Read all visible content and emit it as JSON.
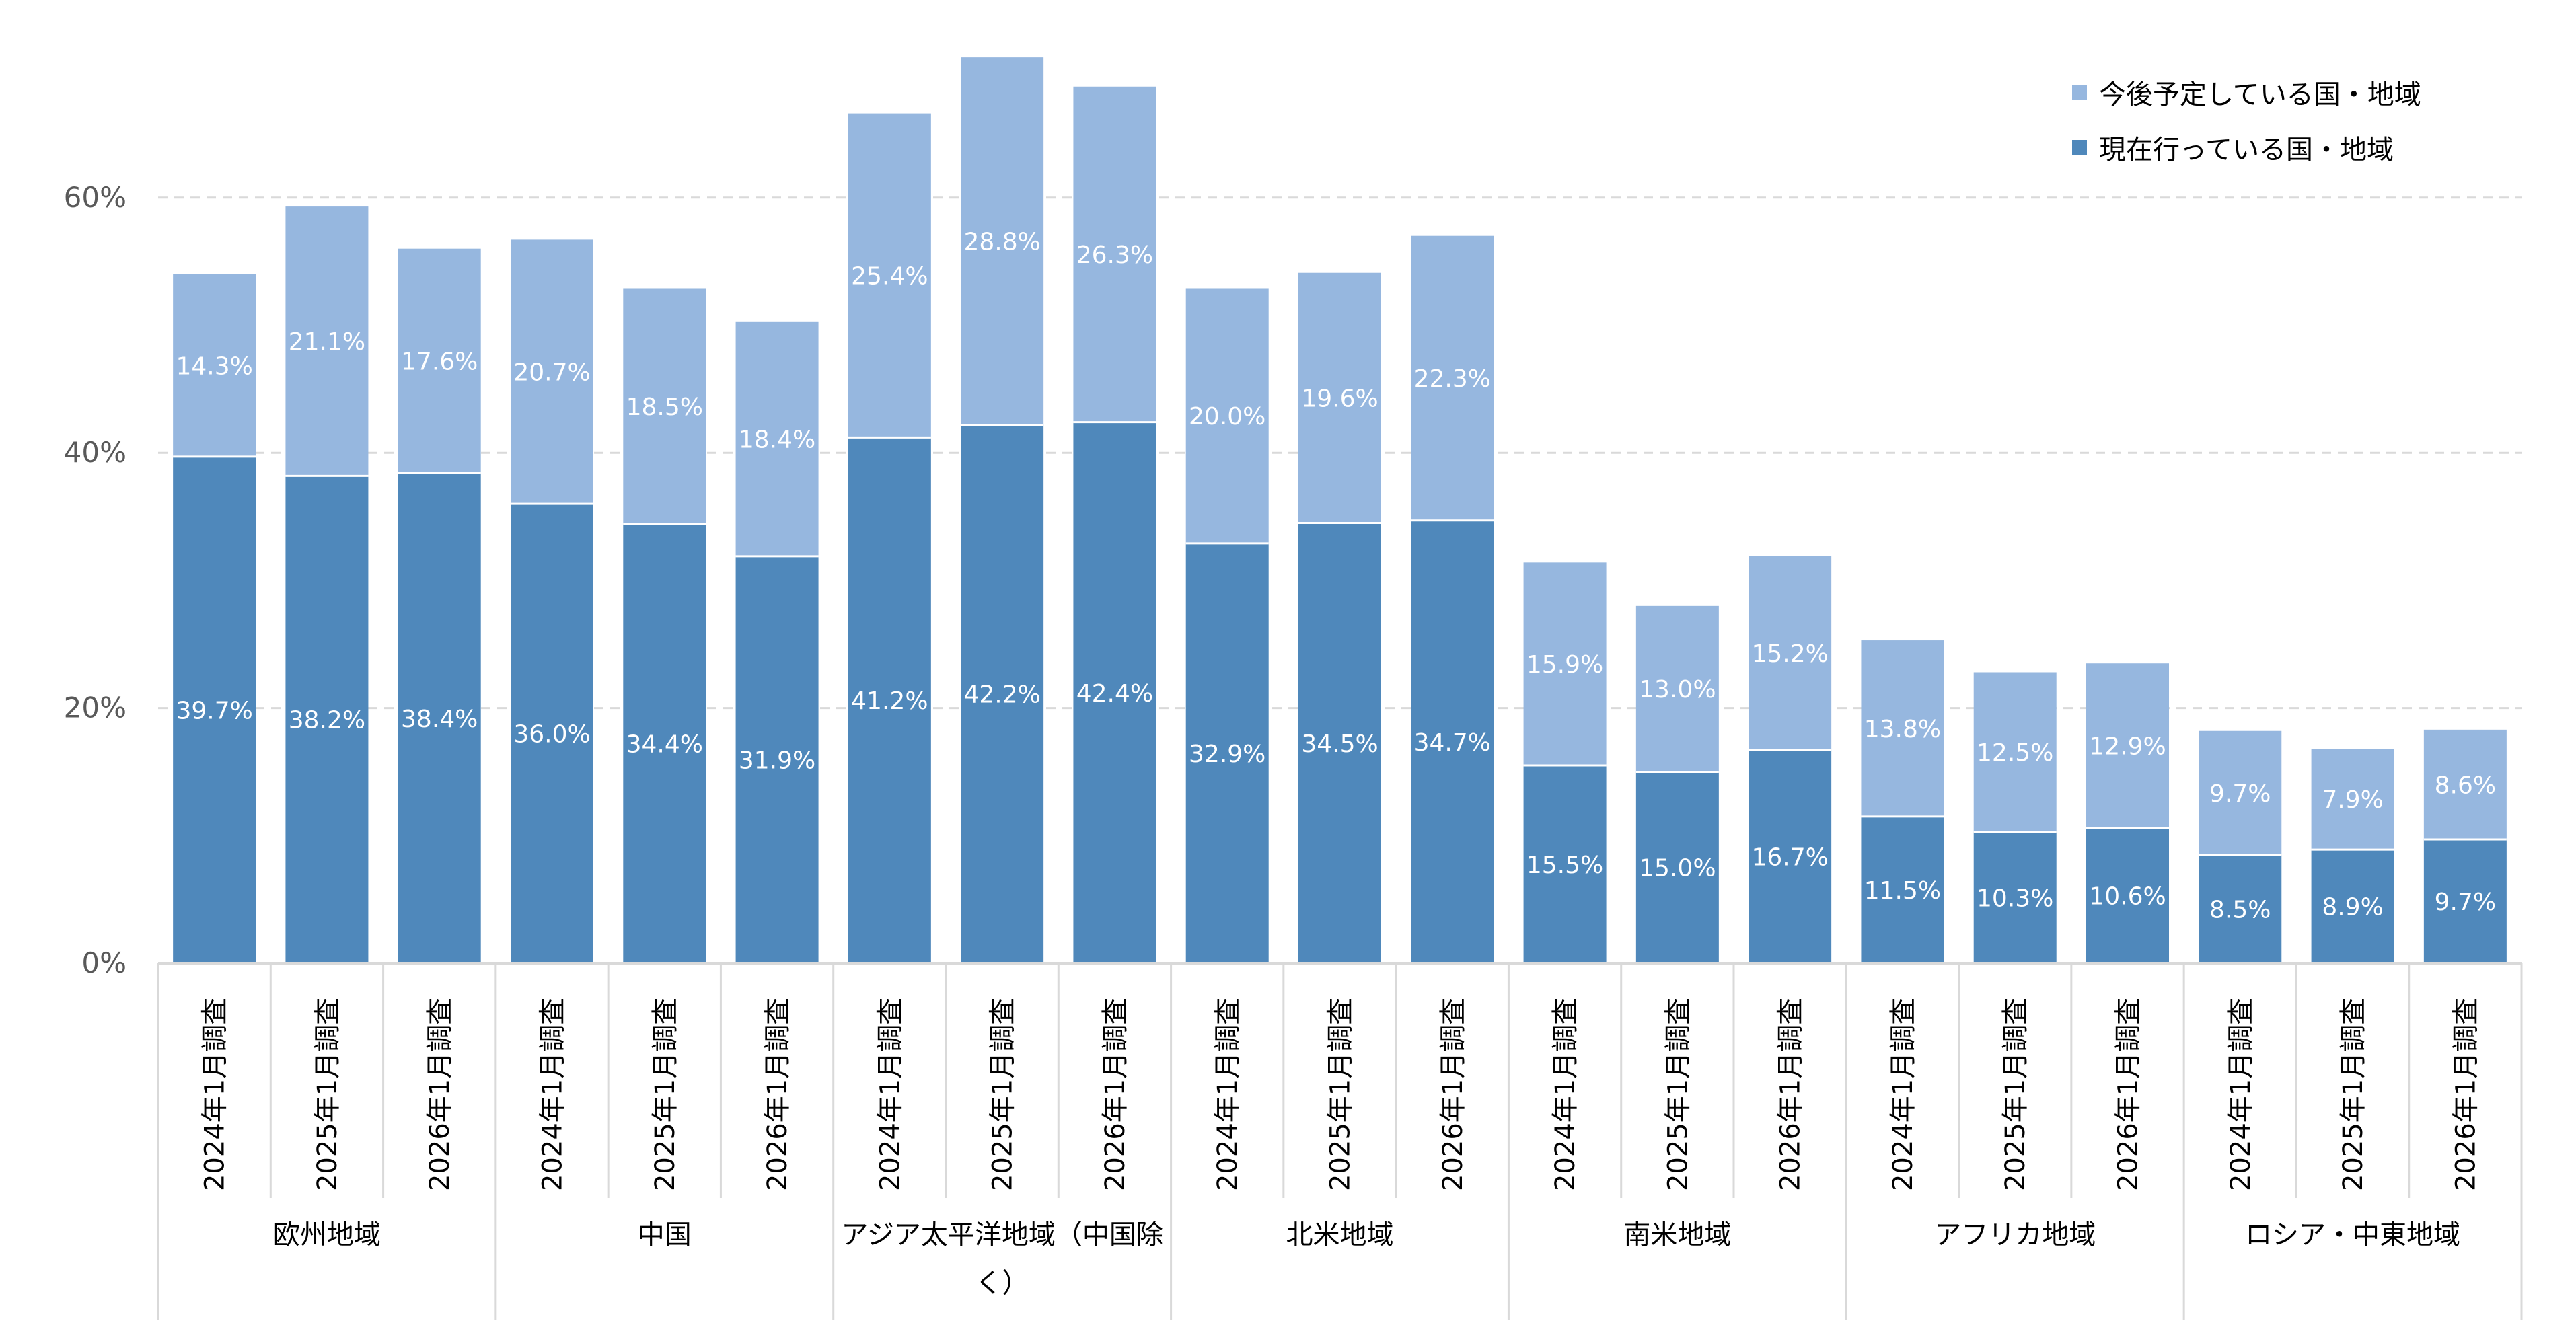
{
  "chart_data": {
    "type": "bar",
    "stacked": true,
    "ylim": [
      0,
      70
    ],
    "yticks": [
      "0%",
      "20%",
      "40%",
      "60%"
    ],
    "ytick_values": [
      0,
      20,
      40,
      60
    ],
    "grid": "horizontal dashed",
    "legend_position": "top-right",
    "categories": [
      "2024年1月調査",
      "2025年1月調査",
      "2026年1月調査",
      "2024年1月調査",
      "2025年1月調査",
      "2026年1月調査",
      "2024年1月調査",
      "2025年1月調査",
      "2026年1月調査",
      "2024年1月調査",
      "2025年1月調査",
      "2026年1月調査",
      "2024年1月調査",
      "2025年1月調査",
      "2026年1月調査",
      "2024年1月調査",
      "2025年1月調査",
      "2026年1月調査",
      "2024年1月調査",
      "2025年1月調査",
      "2026年1月調査"
    ],
    "groups": [
      "欧州地域",
      "中国",
      "アジア太平洋地域（中国除く）",
      "北米地域",
      "南米地域",
      "アフリカ地域",
      "ロシア・中東地域"
    ],
    "series": [
      {
        "name": "現在行っている国・地域",
        "color": "#4f88bb",
        "values": [
          39.7,
          38.2,
          38.4,
          36.0,
          34.4,
          31.9,
          41.2,
          42.2,
          42.4,
          32.9,
          34.5,
          34.7,
          15.5,
          15.0,
          16.7,
          11.5,
          10.3,
          10.6,
          8.5,
          8.9,
          9.7
        ],
        "labels": [
          "39.7%",
          "38.2%",
          "38.4%",
          "36.0%",
          "34.4%",
          "31.9%",
          "41.2%",
          "42.2%",
          "42.4%",
          "32.9%",
          "34.5%",
          "34.7%",
          "15.5%",
          "15.0%",
          "16.7%",
          "11.5%",
          "10.3%",
          "10.6%",
          "8.5%",
          "8.9%",
          "9.7%"
        ]
      },
      {
        "name": "今後予定している国・地域",
        "color": "#96b7df",
        "values": [
          14.3,
          21.1,
          17.6,
          20.7,
          18.5,
          18.4,
          25.4,
          28.8,
          26.3,
          20.0,
          19.6,
          22.3,
          15.9,
          13.0,
          15.2,
          13.8,
          12.5,
          12.9,
          9.7,
          7.9,
          8.6
        ],
        "labels": [
          "14.3%",
          "21.1%",
          "17.6%",
          "20.7%",
          "18.5%",
          "18.4%",
          "25.4%",
          "28.8%",
          "26.3%",
          "20.0%",
          "19.6%",
          "22.3%",
          "15.9%",
          "13.0%",
          "15.2%",
          "13.8%",
          "12.5%",
          "12.9%",
          "9.7%",
          "7.9%",
          "8.6%"
        ]
      }
    ]
  }
}
